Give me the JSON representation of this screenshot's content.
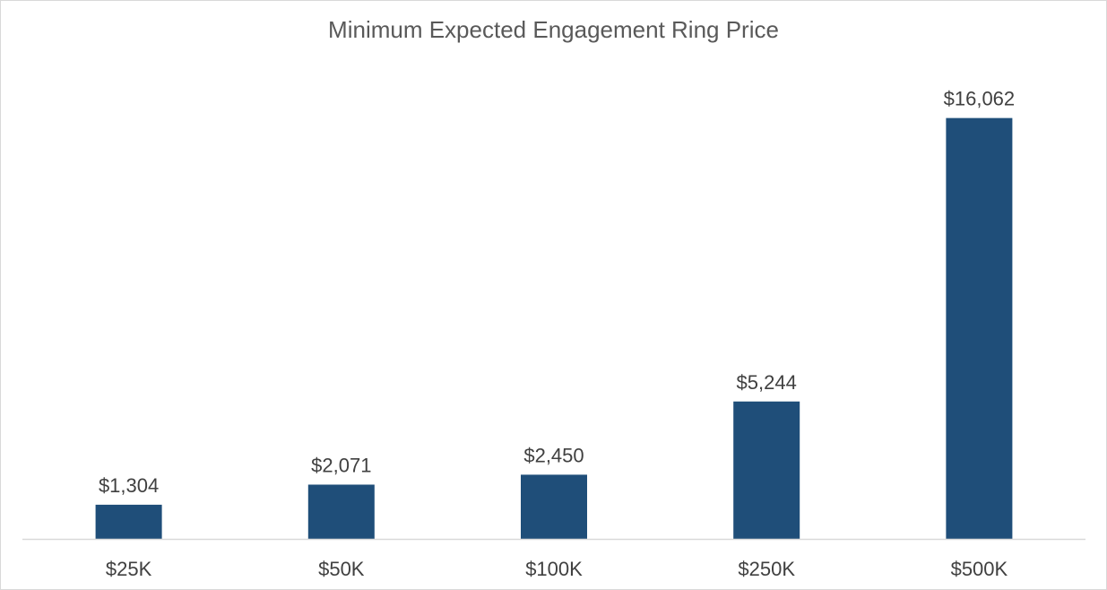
{
  "chart_data": {
    "type": "bar",
    "title": "Minimum Expected Engagement Ring Price",
    "xlabel": "",
    "ylabel": "",
    "categories": [
      "$25K",
      "$50K",
      "$100K",
      "$250K",
      "$500K"
    ],
    "values": [
      1304,
      2071,
      2450,
      5244,
      16062
    ],
    "data_labels": [
      "$1,304",
      "$2,071",
      "$2,450",
      "$5,244",
      "$16,062"
    ],
    "ylim": [
      0,
      18000
    ],
    "grid": false,
    "legend": "none",
    "bar_color": "#1f4e79",
    "axis_color": "#d9d9d9"
  }
}
